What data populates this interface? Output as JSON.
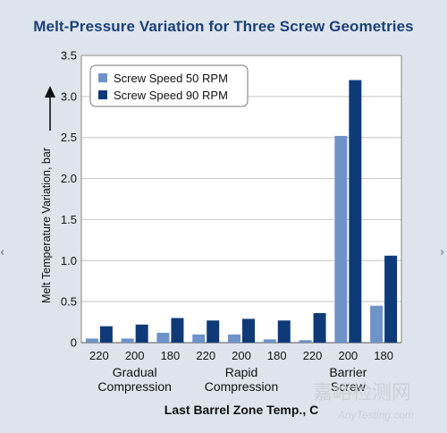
{
  "chart_data": {
    "type": "bar",
    "title": "Melt-Pressure Variation for Three Screw Geometries",
    "ylabel": "Melt Temperature Variation, bar",
    "xlabel": "Last Barrel Zone Temp., C",
    "ylim": [
      0,
      3.5
    ],
    "yticks": [
      "0",
      "0.5",
      "1.0",
      "1.5",
      "2.0",
      "2.5",
      "3.0",
      "3.5"
    ],
    "categories": [
      "220",
      "200",
      "180",
      "220",
      "200",
      "180",
      "220",
      "200",
      "180"
    ],
    "groups": [
      {
        "lines": [
          "Gradual",
          "Compression"
        ],
        "span": [
          0,
          2
        ]
      },
      {
        "lines": [
          "Rapid",
          "Compression"
        ],
        "span": [
          3,
          5
        ]
      },
      {
        "lines": [
          "Barrier",
          "Screw"
        ],
        "span": [
          6,
          8
        ]
      }
    ],
    "series": [
      {
        "name": "Screw Speed 50 RPM",
        "color": "#6e93c8",
        "values": [
          0.05,
          0.05,
          0.12,
          0.1,
          0.1,
          0.04,
          0.03,
          2.52,
          0.45
        ]
      },
      {
        "name": "Screw Speed 90 RPM",
        "color": "#0f3a78",
        "values": [
          0.2,
          0.22,
          0.3,
          0.27,
          0.29,
          0.27,
          0.36,
          3.2,
          1.06
        ]
      }
    ],
    "grid": true,
    "legend": "top-left"
  },
  "watermark": {
    "cn": "嘉峪检测网",
    "en": "AnyTesting.com"
  },
  "edge_glyphs": {
    "left": "‹",
    "right": "›"
  }
}
